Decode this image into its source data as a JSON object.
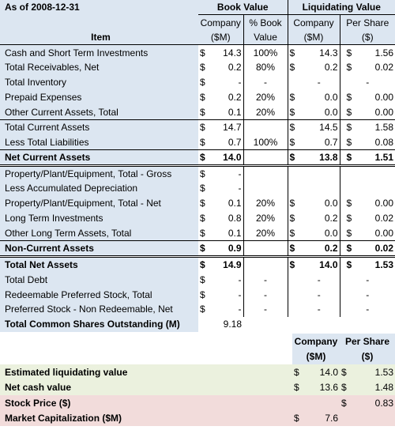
{
  "header": {
    "as_of": "As of 2008-12-31",
    "book_value": "Book Value",
    "liquidating_value": "Liquidating Value",
    "item": "Item",
    "company": "Company",
    "sm": "($M)",
    "pct_book": "% Book",
    "value": "Value",
    "per_share": "Per Share",
    "dollar": "($)"
  },
  "currency": "$",
  "rows": [
    {
      "item": "Cash and Short Term Investments",
      "bold": false,
      "bv": "14.3",
      "pct": "100%",
      "lv": "14.3",
      "ps": "1.56"
    },
    {
      "item": "Total Receivables, Net",
      "bold": false,
      "bv": "0.2",
      "pct": "80%",
      "lv": "0.2",
      "ps": "0.02"
    },
    {
      "item": "Total Inventory",
      "bold": false,
      "bv": "-",
      "pct": "-",
      "lv": "-",
      "ps": "-"
    },
    {
      "item": "Prepaid Expenses",
      "bold": false,
      "bv": "0.2",
      "pct": "20%",
      "lv": "0.0",
      "ps": "0.00"
    },
    {
      "item": "Other Current Assets, Total",
      "bold": false,
      "bv": "0.1",
      "pct": "20%",
      "lv": "0.0",
      "ps": "0.00"
    },
    {
      "item": "Total Current Assets",
      "bold": false,
      "bv": "14.7",
      "pct": "",
      "lv": "14.5",
      "ps": "1.58"
    },
    {
      "item": "Less Total Liabilities",
      "bold": false,
      "bv": "0.7",
      "pct": "100%",
      "lv": "0.7",
      "ps": "0.08"
    },
    {
      "item": "Net Current Assets",
      "bold": true,
      "bv": "14.0",
      "pct": "",
      "lv": "13.8",
      "ps": "1.51"
    },
    {
      "item": "Property/Plant/Equipment, Total - Gross",
      "bold": false,
      "bv": "-",
      "pct": "",
      "lv": "",
      "ps": ""
    },
    {
      "item": "Less Accumulated Depreciation",
      "bold": false,
      "bv": "-",
      "pct": "",
      "lv": "",
      "ps": ""
    },
    {
      "item": "Property/Plant/Equipment, Total - Net",
      "bold": false,
      "bv": "0.1",
      "pct": "20%",
      "lv": "0.0",
      "ps": "0.00"
    },
    {
      "item": "Long Term Investments",
      "bold": false,
      "bv": "0.8",
      "pct": "20%",
      "lv": "0.2",
      "ps": "0.02"
    },
    {
      "item": "Other Long Term Assets, Total",
      "bold": false,
      "bv": "0.1",
      "pct": "20%",
      "lv": "0.0",
      "ps": "0.00"
    },
    {
      "item": "Non-Current Assets",
      "bold": true,
      "bv": "0.9",
      "pct": "",
      "lv": "0.2",
      "ps": "0.02"
    },
    {
      "item": "Total Net Assets",
      "bold": true,
      "bv": "14.9",
      "pct": "",
      "lv": "14.0",
      "ps": "1.53"
    },
    {
      "item": "Total Debt",
      "bold": false,
      "bv": "-",
      "pct": "-",
      "lv": "-",
      "ps": "-"
    },
    {
      "item": "Redeemable Preferred Stock, Total",
      "bold": false,
      "bv": "-",
      "pct": "-",
      "lv": "-",
      "ps": "-"
    },
    {
      "item": "Preferred Stock - Non Redeemable, Net",
      "bold": false,
      "bv": "-",
      "pct": "-",
      "lv": "-",
      "ps": "-"
    }
  ],
  "shares_outstanding": {
    "label": "Total Common Shares Outstanding (M)",
    "value": "9.18"
  },
  "summary": {
    "company": "Company",
    "sm": "($M)",
    "per_share": "Per Share",
    "dollar": "($)",
    "rows": [
      {
        "label": "Estimated liquidating value",
        "company": "14.0",
        "ps": "1.53",
        "bg": "#ebf1de"
      },
      {
        "label": "Net cash value",
        "company": "13.6",
        "ps": "1.48",
        "bg": "#ebf1de"
      },
      {
        "label": "Stock Price ($)",
        "company": "",
        "ps": "0.83",
        "bg": "#f2dcdb"
      },
      {
        "label": "Market Capitalization ($M)",
        "company": "7.6",
        "ps": "",
        "bg": "#f2dcdb"
      }
    ]
  }
}
